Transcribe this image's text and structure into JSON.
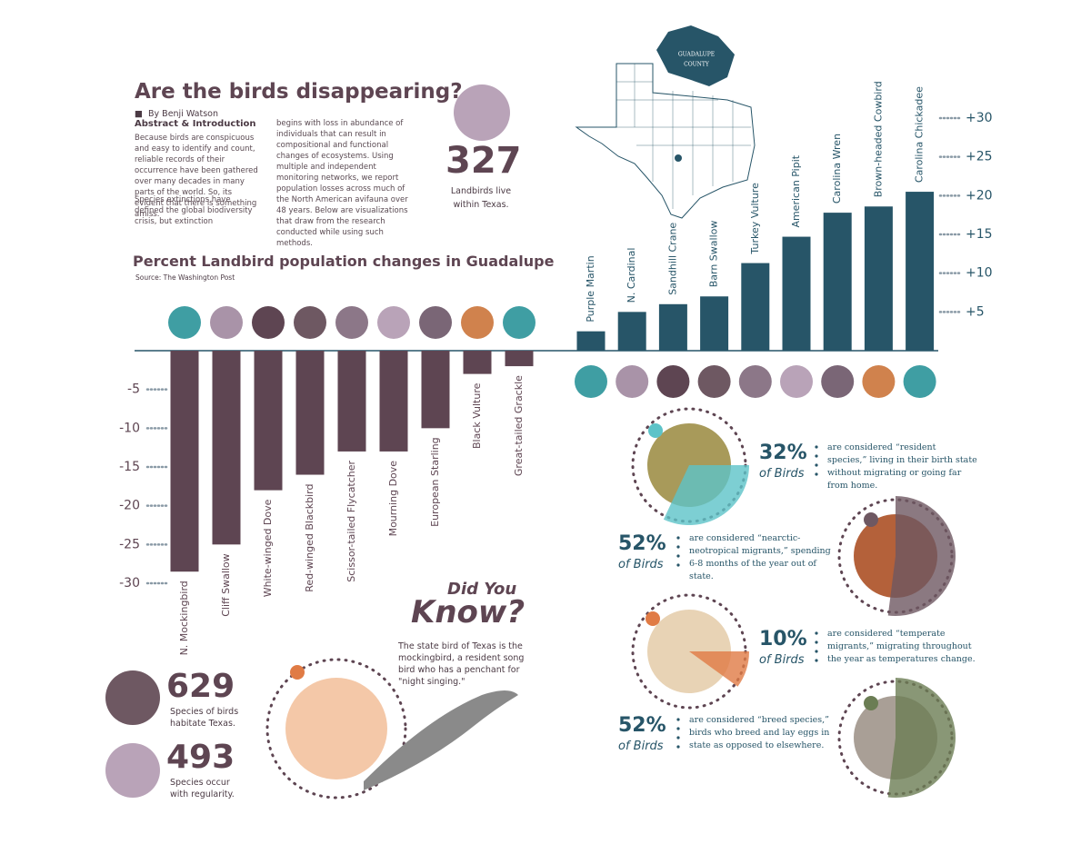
{
  "header": {
    "title": "Are the birds disappearing?",
    "byline": "By Benji Watson",
    "section": "Abstract & Introduction",
    "paragraphs": [
      "Because birds are conspicuous and easy to identify and count, reliable records of their occurrence have been gathered over many decades in many parts of the world. So, its evident that there is something amiss.",
      "Species extinctions have defined the global biodiversity crisis, but extinction",
      "begins with loss in abundance of individuals that can result in compositional and functional changes of ecosystems. Using multiple and independent monitoring networks, we report population losses across much of the North American avifauna over 48 years. Below are visualizations that draw from the research conducted while using such methods."
    ]
  },
  "landbirds": {
    "number": "327",
    "caption": "Landbirds live within Texas."
  },
  "map": {
    "county_label": [
      "GUADALUPE",
      "COUNTY"
    ]
  },
  "chart_data": {
    "type": "bar",
    "title": "Percent Landbird population changes in Guadalupe",
    "subtitle": "Source: The Washington Post",
    "categories": [
      "N. Mockingbird",
      "Cliff Swallow",
      "White-winged Dove",
      "Red-winged Blackbird",
      "Scissor-tailed Flycatcher",
      "Mourning Dove",
      "European Starling",
      "Black Vulture",
      "Great-tailed Grackle",
      "Purple Martin",
      "N. Cardinal",
      "Sandhill Crane",
      "Barn Swallow",
      "Turkey Vulture",
      "American Pipit",
      "Carolina Wren",
      "Brown-headed Cowbird",
      "Carolina Chickadee"
    ],
    "values": [
      -28.5,
      -25,
      -18,
      -16,
      -13,
      -13,
      -10,
      -3,
      -2,
      2.5,
      5,
      6,
      7,
      11.3,
      14.7,
      17.8,
      18.6,
      20.5
    ],
    "ylim": [
      -30,
      30
    ],
    "yticks": [
      -30,
      -25,
      -20,
      -15,
      -10,
      -5,
      {
        "value": 5,
        "label": "+5"
      },
      {
        "value": 10,
        "label": "+10"
      },
      {
        "value": 15,
        "label": "+15"
      },
      {
        "value": 20,
        "label": "+20"
      },
      {
        "value": 25,
        "label": "+25"
      },
      {
        "value": 30,
        "label": "+30"
      }
    ],
    "color_negative": "#5e4552",
    "color_positive": "#275568"
  },
  "did_you_know": {
    "heading_1": "Did You",
    "heading_2": "Know?",
    "text": "The state bird of Texas is the mockingbird, a resident song bird who has a penchant for \"night singing.\""
  },
  "facts": [
    {
      "number": "629",
      "caption": "Species of birds habitate Texas."
    },
    {
      "number": "493",
      "caption": "Species occur with regularity."
    }
  ],
  "migration": [
    {
      "value": 32,
      "label": "32%",
      "unit": "of Birds",
      "color": "#5dc3c8",
      "text": "are considered “resident species,” living in their birth state without migrating or going far from home."
    },
    {
      "value": 52,
      "label": "52%",
      "unit": "of Birds",
      "color": "#6e5862",
      "text": "are considered “nearctic-neotropical migrants,” spending 6-8 months of the year out of state."
    },
    {
      "value": 10,
      "label": "10%",
      "unit": "of Birds",
      "color": "#e07b45",
      "text": "are considered “temperate migrants,” migrating throughout the year as temperatures change."
    },
    {
      "value": 52,
      "label": "52%",
      "unit": "of Birds",
      "color": "#6b7d54",
      "text": "are considered “breed species,” birds who breed and lay eggs in state as opposed to elsewhere."
    }
  ]
}
